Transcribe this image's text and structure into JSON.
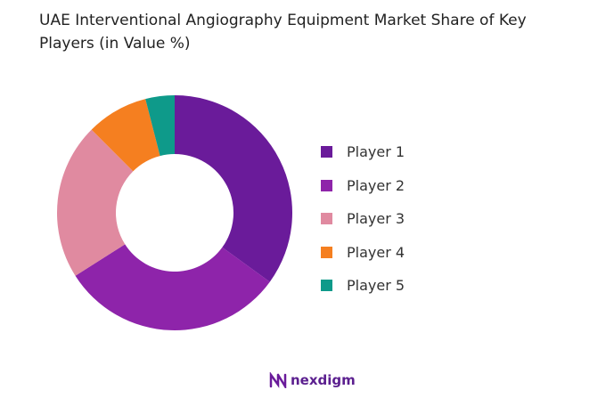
{
  "chart_data": {
    "type": "pie",
    "variant": "donut",
    "title": "UAE Interventional Angiography Equipment  Market Share of Key Players (in Value %)",
    "categories": [
      "Player 1",
      "Player 2",
      "Player 3",
      "Player 4",
      "Player 5"
    ],
    "values": [
      35,
      31,
      21.5,
      8.5,
      4
    ],
    "unit": "%",
    "colors": [
      "#6a1b9a",
      "#8e24aa",
      "#e08aa0",
      "#f57f20",
      "#0e9a8a"
    ],
    "legend_position": "right"
  },
  "brand": {
    "name": "nexdigm"
  }
}
